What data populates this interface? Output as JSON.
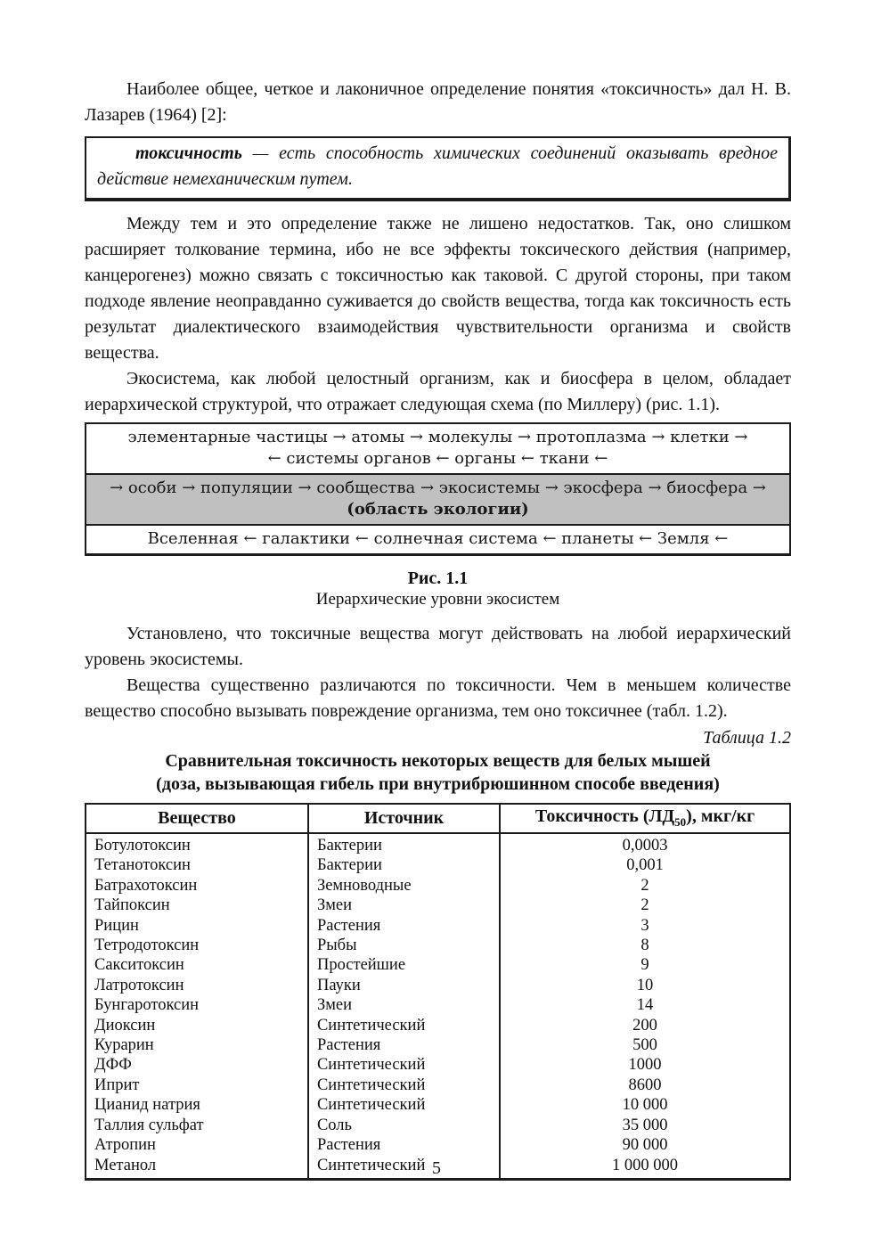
{
  "page_number": "5",
  "paragraphs": {
    "p1": "Наиболее общее, четкое и лаконичное определение понятия «токсичность» дал Н. В. Лазарев (1964) [2]:",
    "p2": "Между тем и это определение также не лишено недостатков. Так, оно слишком расширяет толкование термина, ибо не все эффекты токсического действия (например, канцерогенез) можно связать с токсичностью как таковой. С другой стороны, при таком подходе явление неоправданно суживается до свойств вещества, тогда как токсичность есть результат диалектического взаимодействия чувствительности организма и свойств вещества.",
    "p3": "Экосистема, как любой целостный организм, как и биосфера в целом, обладает иерархической структурой, что отражает следующая схема (по Миллеру) (рис. 1.1).",
    "p4": "Установлено, что токсичные вещества могут действовать на любой иерархический уровень экосистемы.",
    "p5": "Вещества существенно различаются по токсичности. Чем в меньшем количестве вещество способно вызывать повреждение организма, тем оно токсичнее (табл. 1.2)."
  },
  "definition": {
    "term": "токсичность",
    "body": "— есть способность химических соединений оказывать вредное действие немеханическим путем."
  },
  "figure": {
    "shade_color": "#c0c0c0",
    "level1_line1": "элементарные частицы → атомы → молекулы → протоплазма → клетки →",
    "level1_line2": "← системы органов ← органы ← ткани ←",
    "level2_line1": "→ особи → популяции → сообщества → экосистемы → экосфера → биосфера →",
    "level2_line2": "(область экологии)",
    "level3_line1": "Вселенная ← галактики ← солнечная система ← планеты ← Земля ←",
    "caption": "Рис. 1.1",
    "subcaption": "Иерархические уровни экосистем"
  },
  "table": {
    "label": "Таблица 1.2",
    "title_line1": "Сравнительная токсичность некоторых веществ для белых мышей",
    "title_line2": "(доза, вызывающая гибель при внутрибрюшинном способе введения)",
    "headers": {
      "substance": "Вещество",
      "source": "Источник",
      "toxicity_prefix": "Токсичность (ЛД",
      "toxicity_sub": "50",
      "toxicity_suffix": "), мкг/кг"
    },
    "rows": [
      {
        "substance": "Ботулотоксин",
        "source": "Бактерии",
        "toxicity": "0,0003"
      },
      {
        "substance": "Тетанотоксин",
        "source": "Бактерии",
        "toxicity": "0,001"
      },
      {
        "substance": "Батрахотоксин",
        "source": "Земноводные",
        "toxicity": "2"
      },
      {
        "substance": "Тайпоксин",
        "source": "Змеи",
        "toxicity": "2"
      },
      {
        "substance": "Рицин",
        "source": "Растения",
        "toxicity": "3"
      },
      {
        "substance": "Тетродотоксин",
        "source": "Рыбы",
        "toxicity": "8"
      },
      {
        "substance": "Сакситоксин",
        "source": "Простейшие",
        "toxicity": "9"
      },
      {
        "substance": "Латротоксин",
        "source": "Пауки",
        "toxicity": "10"
      },
      {
        "substance": "Бунгаротоксин",
        "source": "Змеи",
        "toxicity": "14"
      },
      {
        "substance": "Диоксин",
        "source": "Синтетический",
        "toxicity": "200"
      },
      {
        "substance": "Курарин",
        "source": "Растения",
        "toxicity": "500"
      },
      {
        "substance": "ДФФ",
        "source": "Синтетический",
        "toxicity": "1000"
      },
      {
        "substance": "Иприт",
        "source": "Синтетический",
        "toxicity": "8600"
      },
      {
        "substance": "Цианид натрия",
        "source": "Синтетический",
        "toxicity": "10 000"
      },
      {
        "substance": "Таллия сульфат",
        "source": "Соль",
        "toxicity": "35 000"
      },
      {
        "substance": "Атропин",
        "source": "Растения",
        "toxicity": "90 000"
      },
      {
        "substance": "Метанол",
        "source": "Синтетический",
        "toxicity": "1 000 000"
      }
    ]
  }
}
